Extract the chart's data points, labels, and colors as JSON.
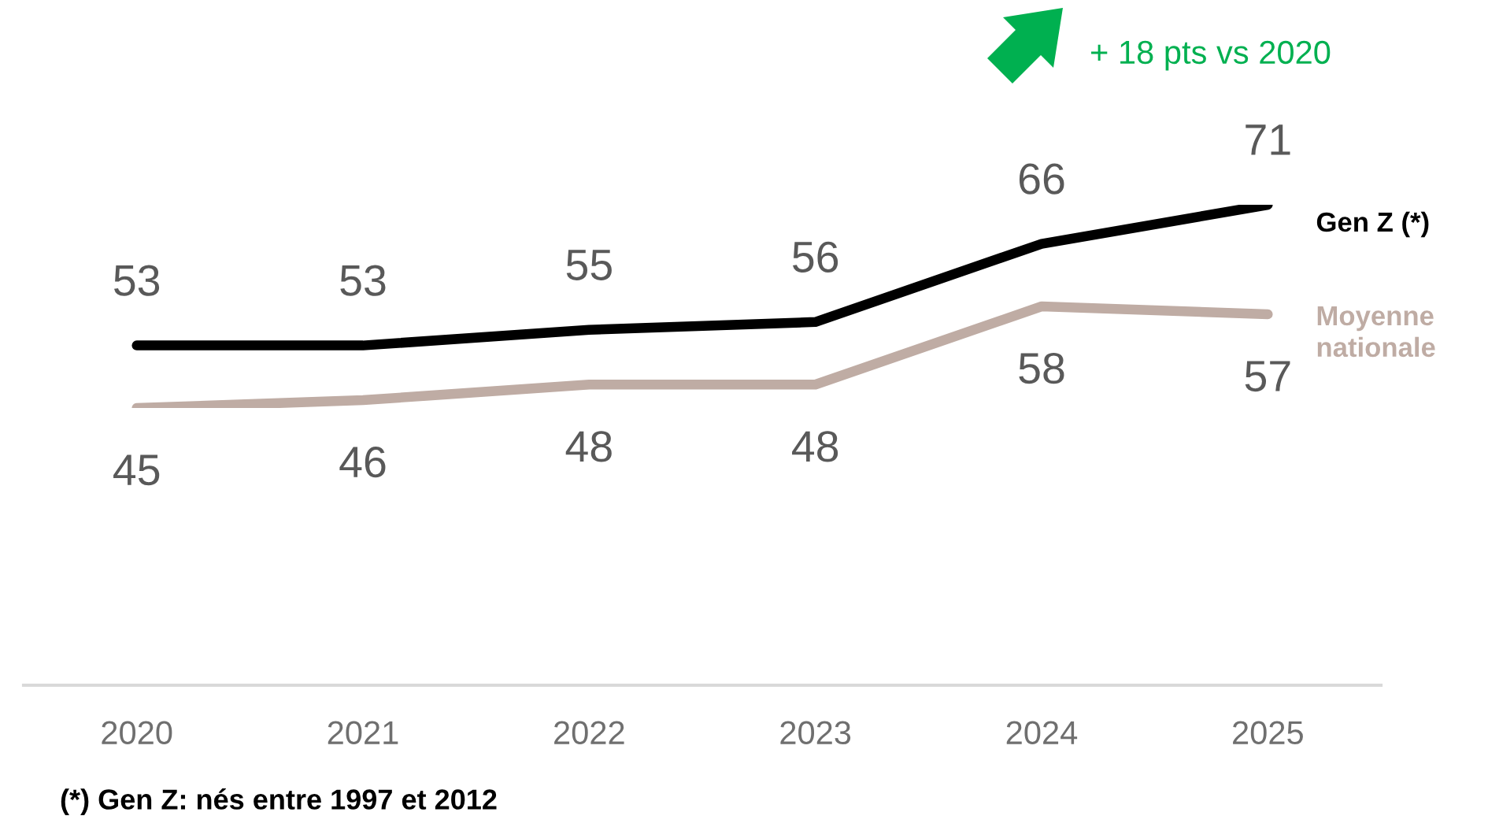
{
  "chart_data": {
    "type": "line",
    "categories": [
      "2020",
      "2021",
      "2022",
      "2023",
      "2024",
      "2025"
    ],
    "series": [
      {
        "name": "Gen Z (*)",
        "color": "#000000",
        "values": [
          53,
          53,
          55,
          56,
          66,
          71
        ]
      },
      {
        "name": "Moyenne nationale",
        "color": "#bfaca4",
        "values": [
          45,
          46,
          48,
          48,
          58,
          57
        ]
      }
    ],
    "data_labels": true,
    "legend": false,
    "grid": false,
    "marker": "none",
    "line_style": "solid",
    "annotations": [
      "+ 18 pts vs 2020",
      "(*) Gen Z: nés entre 1997 et 2012"
    ]
  }
}
